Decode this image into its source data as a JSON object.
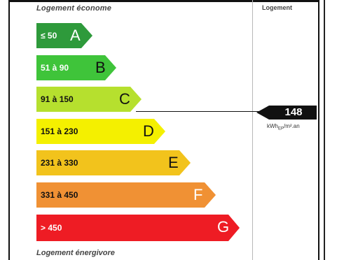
{
  "labels": {
    "top": "Logement économe",
    "bottom": "Logement énergivore",
    "column_header": "Logement"
  },
  "scale": [
    {
      "range": "≤ 50",
      "letter": "A",
      "color": "#2e9a3b"
    },
    {
      "range": "51 à 90",
      "letter": "B",
      "color": "#3fc43a"
    },
    {
      "range": "91 à 150",
      "letter": "C",
      "color": "#b6e02e"
    },
    {
      "range": "151 à 230",
      "letter": "D",
      "color": "#f4f000"
    },
    {
      "range": "231 à 330",
      "letter": "E",
      "color": "#f2c31c"
    },
    {
      "range": "331 à 450",
      "letter": "F",
      "color": "#f09134"
    },
    {
      "range": "> 450",
      "letter": "G",
      "color": "#ee1c24"
    }
  ],
  "indicator": {
    "value": "148",
    "unit_main": "kWh",
    "unit_sub": "EP",
    "unit_tail": "/m².an",
    "class": "C"
  }
}
